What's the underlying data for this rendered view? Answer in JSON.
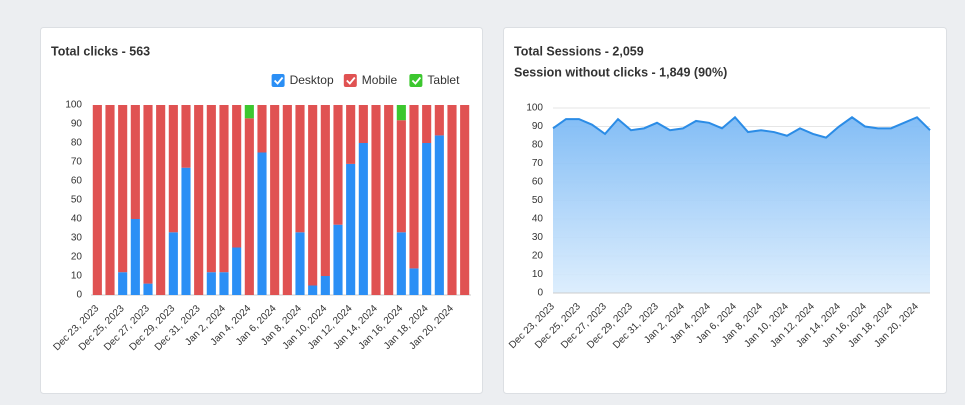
{
  "chart_data": [
    {
      "type": "bar",
      "stacked": true,
      "title": "Total clicks - 563",
      "categories": [
        "Dec 23, 2023",
        null,
        "Dec 25, 2023",
        null,
        "Dec 27, 2023",
        null,
        "Dec 29, 2023",
        null,
        "Dec 31, 2023",
        null,
        "Jan 2, 2024",
        null,
        "Jan 4, 2024",
        null,
        "Jan 6, 2024",
        null,
        "Jan 8, 2024",
        null,
        "Jan 10, 2024",
        null,
        "Jan 12, 2024",
        null,
        "Jan 14, 2024",
        null,
        "Jan 16, 2024",
        null,
        "Jan 18, 2024",
        null,
        "Jan 20, 2024",
        null
      ],
      "series": [
        {
          "name": "Desktop",
          "color": "#2b8ff5",
          "values": [
            0,
            0,
            12,
            40,
            6,
            0,
            33,
            67,
            0,
            12,
            12,
            25,
            0,
            75,
            0,
            0,
            33,
            5,
            10,
            37,
            69,
            80,
            0,
            0,
            33,
            14,
            80,
            84,
            0,
            0
          ]
        },
        {
          "name": "Mobile",
          "color": "#e05252",
          "values": [
            100,
            100,
            88,
            60,
            94,
            100,
            67,
            33,
            100,
            88,
            88,
            75,
            93,
            25,
            100,
            100,
            67,
            95,
            90,
            63,
            31,
            20,
            100,
            100,
            59,
            86,
            20,
            16,
            100,
            100
          ]
        },
        {
          "name": "Tablet",
          "color": "#3cc72f",
          "values": [
            0,
            0,
            0,
            0,
            0,
            0,
            0,
            0,
            0,
            0,
            0,
            0,
            7,
            0,
            0,
            0,
            0,
            0,
            0,
            0,
            0,
            0,
            0,
            0,
            8,
            0,
            0,
            0,
            0,
            0
          ]
        }
      ],
      "ylim": [
        0,
        100
      ],
      "yticks": [
        0,
        10,
        20,
        30,
        40,
        50,
        60,
        70,
        80,
        90,
        100
      ],
      "grid": false,
      "legend": "top-right"
    },
    {
      "type": "area",
      "title": "Total Sessions - 2,059",
      "subtitle": "Session without clicks - 1,849 (90%)",
      "categories": [
        "Dec 23, 2023",
        null,
        "Dec 25, 2023",
        null,
        "Dec 27, 2023",
        null,
        "Dec 29, 2023",
        null,
        "Dec 31, 2023",
        null,
        "Jan 2, 2024",
        null,
        "Jan 4, 2024",
        null,
        "Jan 6, 2024",
        null,
        "Jan 8, 2024",
        null,
        "Jan 10, 2024",
        null,
        "Jan 12, 2024",
        null,
        "Jan 14, 2024",
        null,
        "Jan 16, 2024",
        null,
        "Jan 18, 2024",
        null,
        "Jan 20, 2024",
        null
      ],
      "values": [
        89,
        94,
        94,
        91,
        86,
        94,
        88,
        89,
        92,
        88,
        89,
        93,
        92,
        89,
        95,
        87,
        88,
        87,
        85,
        89,
        86,
        84,
        90,
        95,
        90,
        89,
        89,
        92,
        95,
        88
      ],
      "color": "#2b8ce6",
      "ylim": [
        0,
        100
      ],
      "yticks": [
        0,
        10,
        20,
        30,
        40,
        50,
        60,
        70,
        80,
        90,
        100
      ],
      "grid": true
    }
  ]
}
